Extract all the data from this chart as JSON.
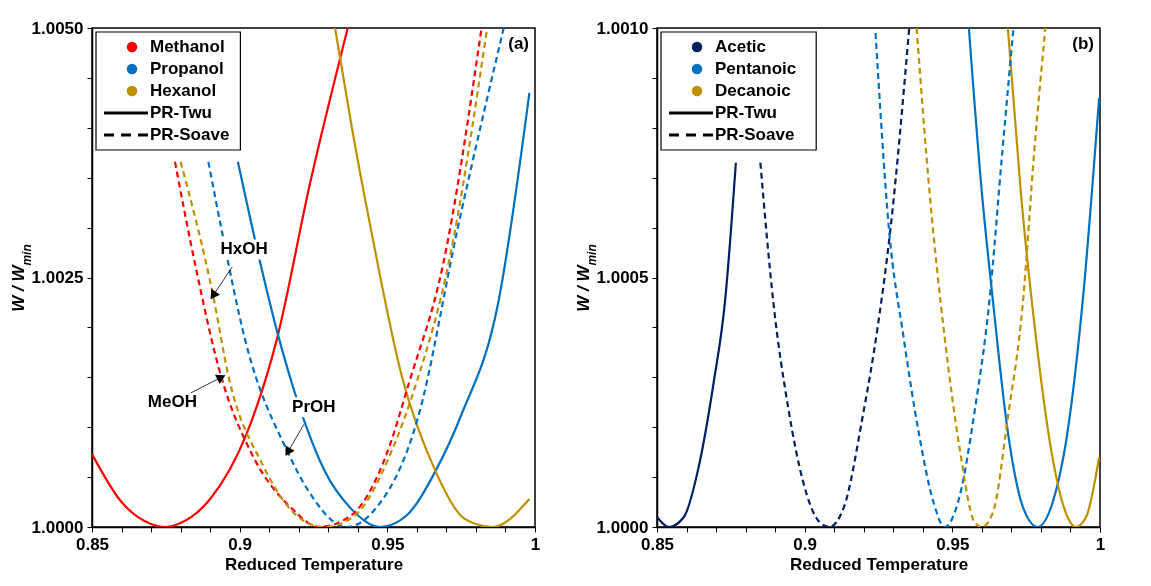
{
  "chart_data": [
    {
      "type": "line",
      "xlabel": "Reduced Temperature",
      "ylabel": "W / W$_{min}$",
      "legend": "top left",
      "xlim": [
        0.85,
        1
      ],
      "ylim": [
        1,
        1.005
      ],
      "xticks": [
        0.85,
        {
          "value": 0.86,
          "label": null
        },
        {
          "value": 0.87,
          "label": null
        },
        {
          "value": 0.88,
          "label": null
        },
        {
          "value": 0.89,
          "label": null
        },
        0.9,
        {
          "value": 0.91,
          "label": null
        },
        {
          "value": 0.92,
          "label": null
        },
        {
          "value": 0.93,
          "label": null
        },
        {
          "value": 0.94,
          "label": null
        },
        0.95,
        {
          "value": 0.96,
          "label": null
        },
        {
          "value": 0.97,
          "label": null
        },
        {
          "value": 0.98,
          "label": null
        },
        {
          "value": 0.99,
          "label": null
        },
        1
      ],
      "yticks": [
        {
          "value": 1,
          "label": "1.0000"
        },
        {
          "value": 1.0005,
          "label": null
        },
        {
          "value": 1.001,
          "label": null
        },
        {
          "value": 1.0015,
          "label": null
        },
        {
          "value": 1.002,
          "label": null
        },
        {
          "value": 1.0025,
          "label": "1.0025"
        },
        {
          "value": 1.003,
          "label": null
        },
        {
          "value": 1.0035,
          "label": null
        },
        {
          "value": 1.004,
          "label": null
        },
        {
          "value": 1.0045,
          "label": null
        },
        {
          "value": 1.005,
          "label": "1.0050"
        }
      ],
      "series": [
        {
          "name": "Methanol",
          "color": "#ff0000",
          "line_style": "solid",
          "x": [
            0.85,
            0.86,
            0.87,
            0.8744,
            0.88,
            0.89,
            0.9023,
            0.9125,
            0.9238,
            0.9366
          ],
          "values": [
            1.00073,
            1.00025,
            1.00003,
            1.0,
            1.00004,
            1.00028,
            1.00093,
            1.00187,
            1.00344,
            1.005
          ]
        },
        {
          "name": "Propanol",
          "color": "#0070c0",
          "line_style": "solid",
          "x": [
            0.8994,
            0.9075,
            0.9125,
            0.9181,
            0.9225,
            0.9288,
            0.9375,
            0.9475,
            0.9563,
            0.9663,
            0.975,
            0.9875,
            0.9981
          ],
          "values": [
            1.00366,
            1.00258,
            1.00198,
            1.0014,
            1.00101,
            1.00056,
            1.00019,
            1.0,
            1.00011,
            1.00056,
            1.00112,
            1.00224,
            1.00435
          ]
        },
        {
          "name": "Hexanol",
          "color": "#bf9000",
          "line_style": "solid",
          "x": [
            0.9323,
            0.938,
            0.9444,
            0.955,
            0.9663,
            0.975,
            0.98,
            0.9856,
            0.9981
          ],
          "values": [
            1.005,
            1.004,
            1.00299,
            1.0015,
            1.00056,
            1.00011,
            1.00003,
            1.0,
            1.00028
          ]
        },
        {
          "color": "#ff0000",
          "line_style": "dashed",
          "x": [
            0.8781,
            0.885,
            0.8938,
            0.9038,
            0.9175,
            0.9269,
            0.9375,
            0.95,
            0.9575,
            0.9688,
            0.9819
          ],
          "values": [
            1.00366,
            1.00262,
            1.0015,
            1.00075,
            1.00019,
            1.0,
            1.00011,
            1.00075,
            1.00146,
            1.00262,
            1.005
          ]
        },
        {
          "color": "#0070c0",
          "line_style": "dashed",
          "x": [
            0.8894,
            0.8938,
            0.9019,
            0.9163,
            0.9231,
            0.9363,
            0.945,
            0.9606,
            0.9738,
            0.9894
          ],
          "values": [
            1.00366,
            1.00299,
            1.00187,
            1.00075,
            1.00037,
            1.0,
            1.00015,
            1.00112,
            1.00299,
            1.005
          ]
        },
        {
          "color": "#bf9000",
          "line_style": "dashed",
          "x": [
            0.88,
            0.891,
            0.8963,
            0.9075,
            0.9213,
            0.9288,
            0.9388,
            0.9513,
            0.96,
            0.9706,
            0.9838
          ],
          "values": [
            1.00366,
            1.00232,
            1.0015,
            1.00064,
            1.00007,
            1.0,
            1.00011,
            1.00075,
            1.00146,
            1.00262,
            1.005
          ]
        },
        {
          "name": "PR-Twu",
          "color": "#000000",
          "line_style": "solid"
        },
        {
          "name": "PR-Soave",
          "color": "#000000",
          "line_style": "dashed"
        }
      ],
      "annotations": [
        "(a)",
        {
          "text": "HxOH",
          "x": 0.891,
          "y": 1.00232
        },
        {
          "text": "MeOH",
          "x": 0.8938,
          "y": 1.0015
        },
        {
          "text": "PrOH",
          "x": 0.9163,
          "y": 1.00075
        }
      ]
    },
    {
      "type": "line",
      "xlabel": "Reduced Temperature",
      "ylabel": "W / W$_{min}$",
      "legend": "top left",
      "xlim": [
        0.85,
        1
      ],
      "ylim": [
        1,
        1.001
      ],
      "xticks": [
        0.85,
        {
          "value": 0.86,
          "label": null
        },
        {
          "value": 0.87,
          "label": null
        },
        {
          "value": 0.88,
          "label": null
        },
        {
          "value": 0.89,
          "label": null
        },
        0.9,
        {
          "value": 0.91,
          "label": null
        },
        {
          "value": 0.92,
          "label": null
        },
        {
          "value": 0.93,
          "label": null
        },
        {
          "value": 0.94,
          "label": null
        },
        0.95,
        {
          "value": 0.96,
          "label": null
        },
        {
          "value": 0.97,
          "label": null
        },
        {
          "value": 0.98,
          "label": null
        },
        {
          "value": 0.99,
          "label": null
        },
        1
      ],
      "yticks": [
        {
          "value": 1,
          "label": "1.0000"
        },
        {
          "value": 1.0001,
          "label": null
        },
        {
          "value": 1.0002,
          "label": null
        },
        {
          "value": 1.0003,
          "label": null
        },
        {
          "value": 1.0004,
          "label": null
        },
        {
          "value": 1.0005,
          "label": "1.0005"
        },
        {
          "value": 1.0006,
          "label": null
        },
        {
          "value": 1.0007,
          "label": null
        },
        {
          "value": 1.0008,
          "label": null
        },
        {
          "value": 1.0009,
          "label": null
        },
        {
          "value": 1.001,
          "label": "1.0010"
        }
      ],
      "series": [
        {
          "name": "Acetic",
          "color": "#002060",
          "line_style": "solid",
          "x": [
            0.85,
            0.854,
            0.8591,
            0.8641,
            0.8692,
            0.873,
            0.8767
          ],
          "values": [
            1.00002,
            1.0,
            1.00002,
            1.00012,
            1.00029,
            1.00045,
            1.00073
          ]
        },
        {
          "name": "Pentanoic",
          "color": "#0070c0",
          "line_style": "solid",
          "x": [
            0.9556,
            0.96,
            0.9638,
            0.9688,
            0.9739,
            0.9789,
            0.984,
            0.989,
            0.9941,
            0.9997
          ],
          "values": [
            1.001,
            1.00067,
            1.00045,
            1.00019,
            1.00004,
            1.0,
            1.00005,
            1.00019,
            1.00045,
            1.00086
          ]
        },
        {
          "name": "Decanoic",
          "color": "#bf9000",
          "line_style": "solid",
          "x": [
            0.9688,
            0.9732,
            0.9783,
            0.9833,
            0.989,
            0.9918,
            0.9953,
            0.9997
          ],
          "values": [
            1.001,
            1.00067,
            1.00038,
            1.00016,
            1.00002,
            1.0,
            1.00002,
            1.00014
          ]
        },
        {
          "color": "#002060",
          "line_style": "dashed",
          "x": [
            0.885,
            0.8894,
            0.8944,
            0.8995,
            0.905,
            0.9083,
            0.9133,
            0.9196,
            0.9247,
            0.9291,
            0.9354
          ],
          "values": [
            1.00073,
            1.00045,
            1.00024,
            1.00009,
            1.00001,
            1.0,
            1.00004,
            1.00022,
            1.0004,
            1.0006,
            1.001
          ]
        },
        {
          "color": "#0070c0",
          "line_style": "dashed",
          "x": [
            0.924,
            0.9285,
            0.9335,
            0.9386,
            0.9436,
            0.9474,
            0.9524,
            0.9575,
            0.9625,
            0.9669,
            0.9707
          ],
          "values": [
            1.00099,
            1.0006,
            1.00038,
            1.00019,
            1.00005,
            1.0,
            1.00006,
            1.00023,
            1.00045,
            1.00075,
            1.001
          ]
        },
        {
          "color": "#bf9000",
          "line_style": "dashed",
          "x": [
            0.9379,
            0.9423,
            0.9474,
            0.9524,
            0.9575,
            0.96,
            0.9638,
            0.9688,
            0.9739,
            0.9777,
            0.9815
          ],
          "values": [
            1.001,
            1.00067,
            1.00038,
            1.00016,
            1.00001,
            1.0,
            1.00003,
            1.00022,
            1.00045,
            1.00075,
            1.001
          ]
        },
        {
          "name": "PR-Twu",
          "color": "#000000",
          "line_style": "solid"
        },
        {
          "name": "PR-Soave",
          "color": "#000000",
          "line_style": "dashed"
        }
      ],
      "annotations": [
        "(b)"
      ]
    }
  ]
}
